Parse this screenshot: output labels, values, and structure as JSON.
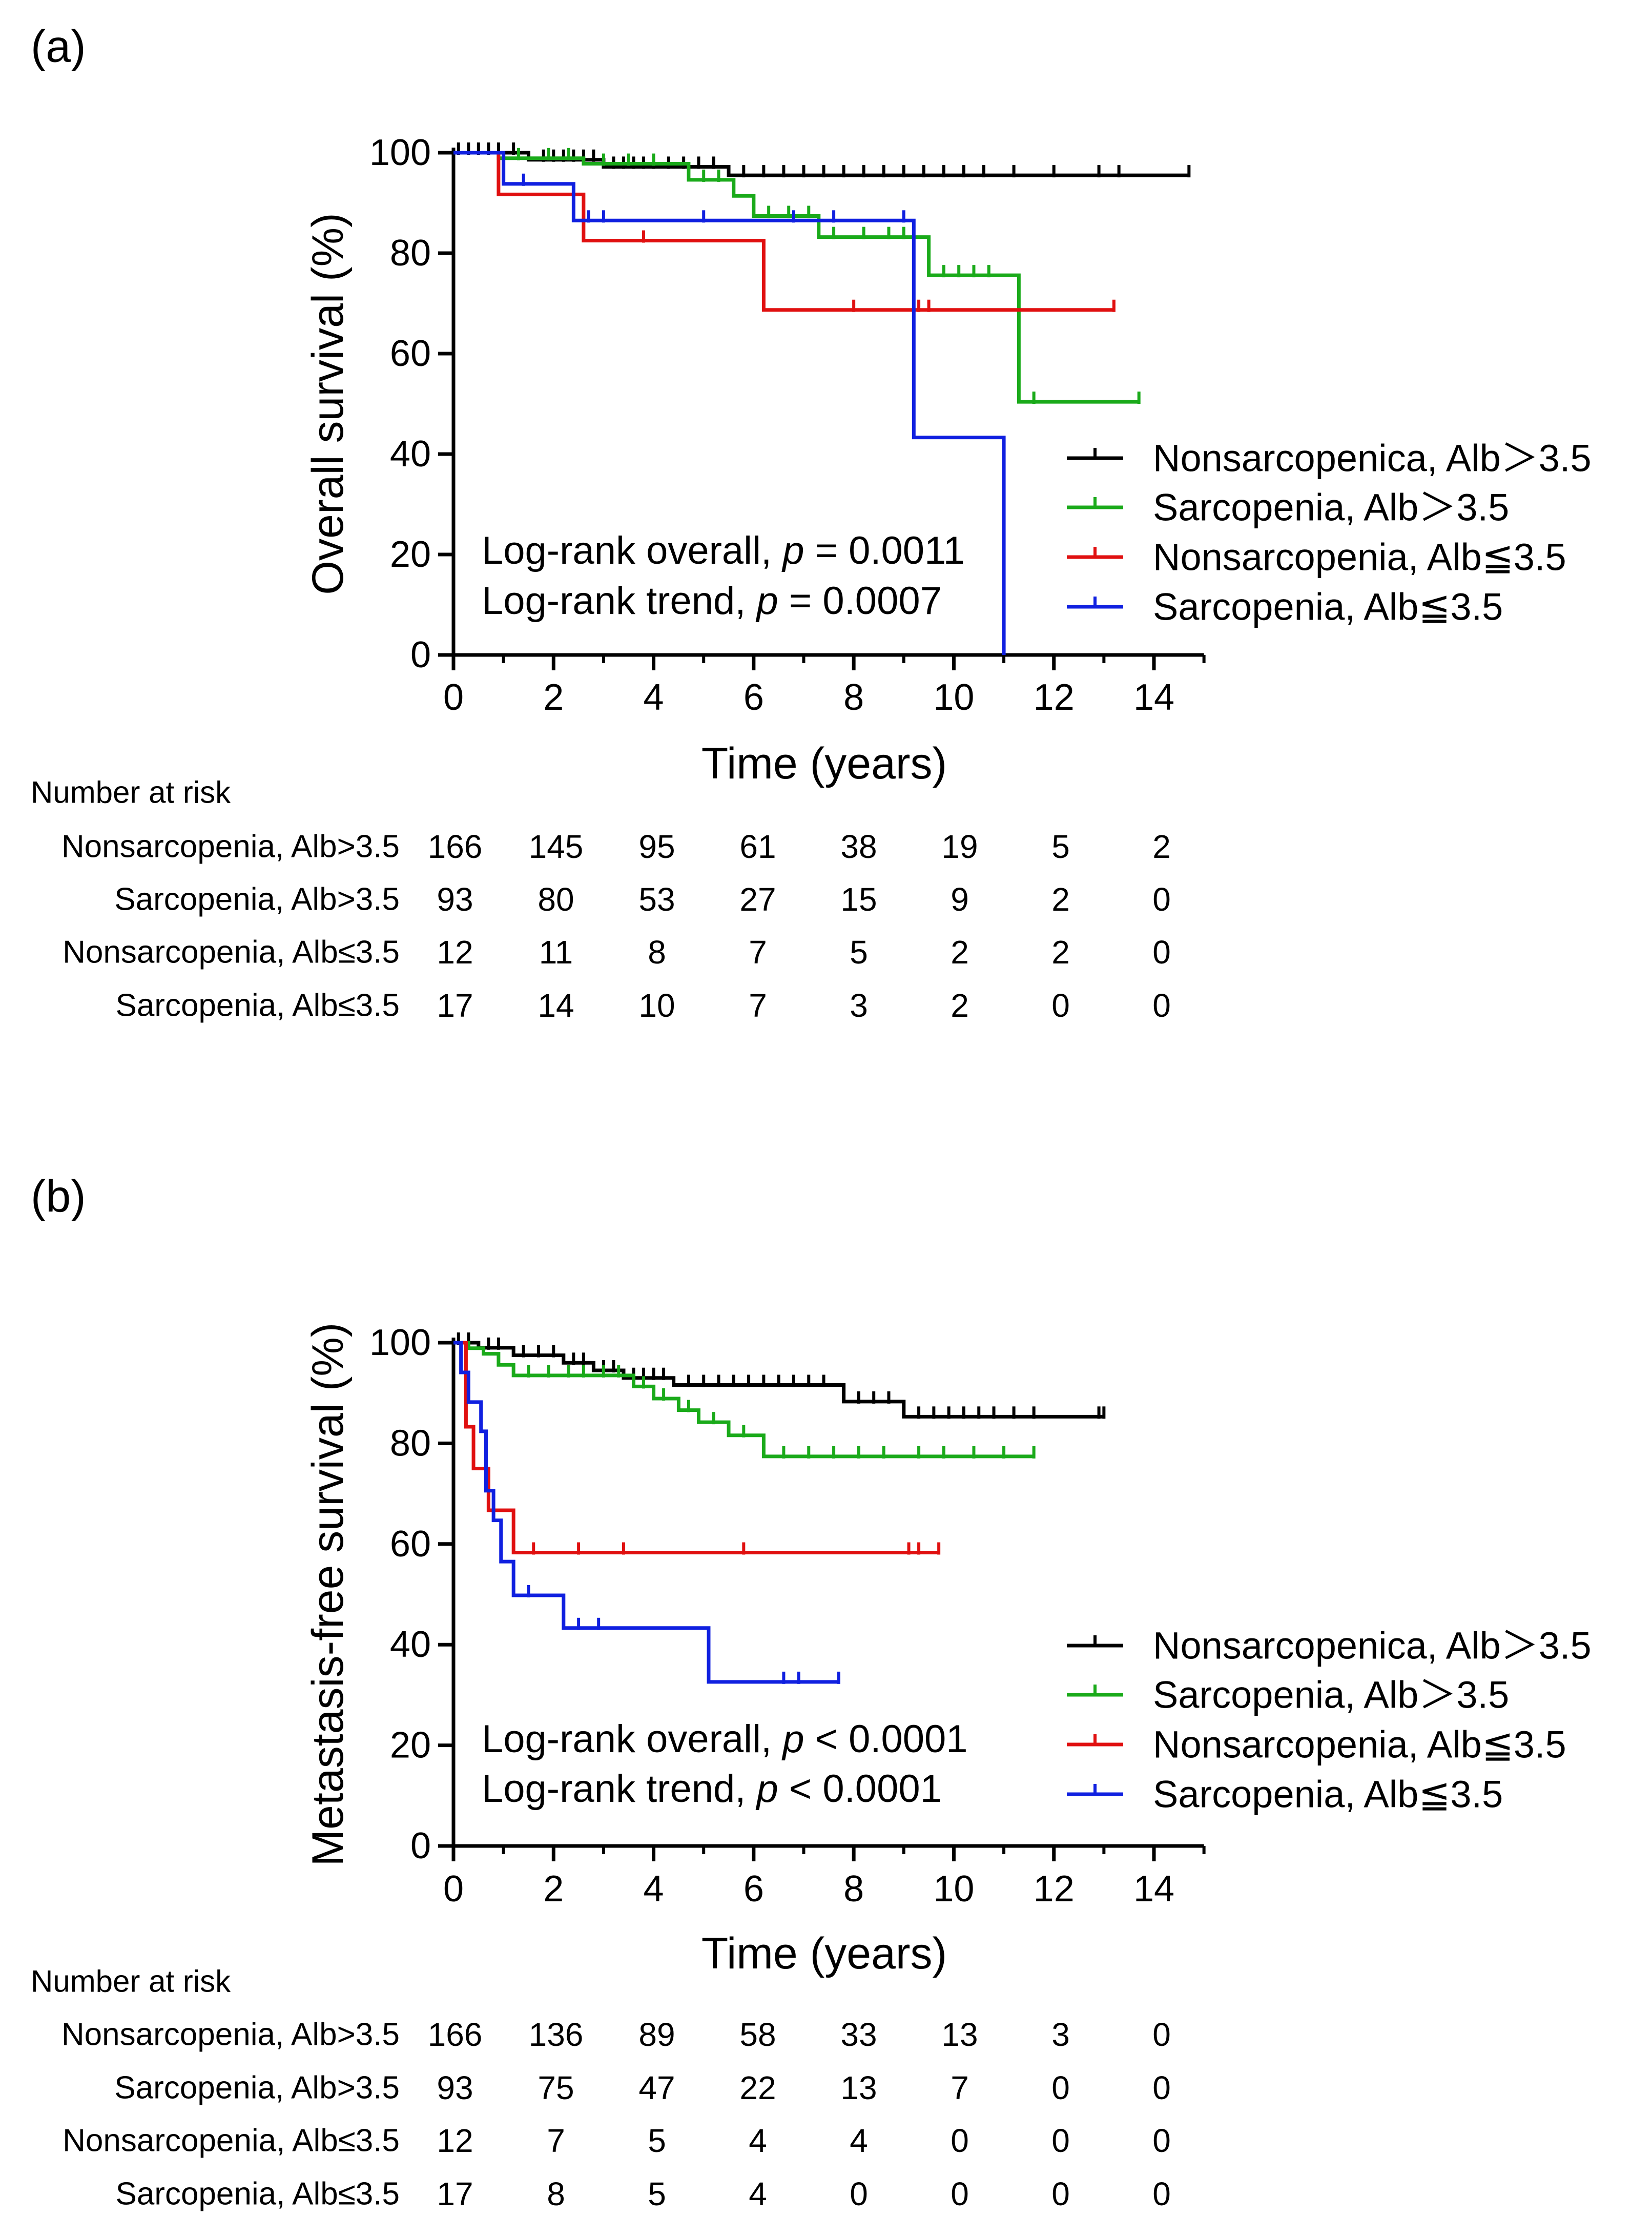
{
  "colors": {
    "Nonsarcopenica, Alb＞3.5": "#000000",
    "Sarcopenia, Alb＞3.5": "#1aaa1a",
    "Nonsarcopenia, Alb≦3.5": "#e01010",
    "Sarcopenia, Alb≦3.5": "#1020e0"
  },
  "risk_table_title": "Number at risk",
  "risk_times": [
    0,
    2,
    4,
    6,
    8,
    10,
    12,
    14
  ],
  "chart_data": [
    {
      "panel_label": "(a)",
      "type": "line",
      "subtype": "kaplan-meier",
      "xlabel": "Time (years)",
      "ylabel": "Overall survival (%)",
      "xlim": [
        0,
        15
      ],
      "ylim": [
        0,
        100
      ],
      "xticks": [
        0,
        2,
        4,
        6,
        8,
        10,
        12,
        14
      ],
      "yticks": [
        0,
        20,
        40,
        60,
        80,
        100
      ],
      "legend_position": "right",
      "annotations": [
        "Log-rank overall, ",
        "p",
        " = 0.0011",
        "Log-rank trend, ",
        "p",
        " = 0.0007"
      ],
      "annotation_lines": [
        {
          "prefix": "Log-rank overall, ",
          "italic": "p",
          "suffix": " = 0.0011"
        },
        {
          "prefix": "Log-rank trend, ",
          "italic": "p",
          "suffix": " = 0.0007"
        }
      ],
      "series": [
        {
          "name": "Nonsarcopenica, Alb＞3.5",
          "steps": [
            [
              0,
              100
            ],
            [
              1.5,
              98.6
            ],
            [
              3,
              97.2
            ],
            [
              5.5,
              95.5
            ],
            [
              14.7,
              95.5
            ]
          ],
          "censors": [
            [
              0.1,
              100
            ],
            [
              0.3,
              100
            ],
            [
              0.5,
              100
            ],
            [
              0.7,
              100
            ],
            [
              0.9,
              100
            ],
            [
              1.2,
              100
            ],
            [
              1.8,
              98.6
            ],
            [
              2.0,
              98.6
            ],
            [
              2.2,
              98.6
            ],
            [
              2.4,
              98.6
            ],
            [
              2.6,
              98.6
            ],
            [
              2.8,
              98.6
            ],
            [
              3.2,
              97.2
            ],
            [
              3.4,
              97.2
            ],
            [
              3.6,
              97.2
            ],
            [
              3.8,
              97.2
            ],
            [
              4.0,
              97.2
            ],
            [
              4.3,
              97.2
            ],
            [
              4.6,
              97.2
            ],
            [
              4.9,
              97.2
            ],
            [
              5.2,
              97.2
            ],
            [
              5.8,
              95.5
            ],
            [
              6.2,
              95.5
            ],
            [
              6.6,
              95.5
            ],
            [
              7.0,
              95.5
            ],
            [
              7.4,
              95.5
            ],
            [
              7.8,
              95.5
            ],
            [
              8.2,
              95.5
            ],
            [
              8.6,
              95.5
            ],
            [
              9.0,
              95.5
            ],
            [
              9.4,
              95.5
            ],
            [
              9.8,
              95.5
            ],
            [
              10.2,
              95.5
            ],
            [
              10.6,
              95.5
            ],
            [
              11.2,
              95.5
            ],
            [
              12.0,
              95.5
            ],
            [
              12.9,
              95.5
            ],
            [
              13.3,
              95.5
            ],
            [
              14.7,
              95.5
            ]
          ]
        },
        {
          "name": "Sarcopenia, Alb＞3.5",
          "steps": [
            [
              0,
              100
            ],
            [
              0.9,
              98.9
            ],
            [
              2.6,
              97.8
            ],
            [
              4.7,
              94.6
            ],
            [
              5.6,
              91.4
            ],
            [
              6.0,
              87.4
            ],
            [
              7.3,
              83.2
            ],
            [
              9.5,
              75.6
            ],
            [
              11.3,
              50.4
            ],
            [
              13.7,
              50.4
            ]
          ],
          "censors": [
            [
              1.3,
              98.9
            ],
            [
              1.9,
              98.9
            ],
            [
              2.3,
              98.9
            ],
            [
              3.0,
              97.8
            ],
            [
              3.5,
              97.8
            ],
            [
              4.0,
              97.8
            ],
            [
              5.0,
              94.6
            ],
            [
              5.3,
              94.6
            ],
            [
              6.3,
              87.4
            ],
            [
              6.7,
              87.4
            ],
            [
              7.1,
              87.4
            ],
            [
              7.6,
              83.2
            ],
            [
              8.2,
              83.2
            ],
            [
              8.7,
              83.2
            ],
            [
              9.0,
              83.2
            ],
            [
              9.8,
              75.6
            ],
            [
              10.1,
              75.6
            ],
            [
              10.4,
              75.6
            ],
            [
              10.7,
              75.6
            ],
            [
              11.6,
              50.4
            ],
            [
              13.7,
              50.4
            ]
          ]
        },
        {
          "name": "Nonsarcopenia, Alb≦3.5",
          "steps": [
            [
              0,
              100
            ],
            [
              0.9,
              91.7
            ],
            [
              2.6,
              82.5
            ],
            [
              6.2,
              68.7
            ],
            [
              13.2,
              68.7
            ]
          ],
          "censors": [
            [
              3.8,
              82.5
            ],
            [
              8.0,
              68.7
            ],
            [
              9.3,
              68.7
            ],
            [
              9.5,
              68.7
            ],
            [
              13.2,
              68.7
            ]
          ]
        },
        {
          "name": "Sarcopenia, Alb≦3.5",
          "steps": [
            [
              0,
              100
            ],
            [
              1.0,
              93.8
            ],
            [
              2.4,
              86.5
            ],
            [
              7.3,
              86.5
            ],
            [
              9.2,
              43.3
            ],
            [
              11.0,
              0
            ]
          ],
          "censors": [
            [
              1.4,
              93.8
            ],
            [
              2.7,
              86.5
            ],
            [
              3.0,
              86.5
            ],
            [
              5.0,
              86.5
            ],
            [
              6.8,
              86.5
            ],
            [
              7.6,
              86.5
            ],
            [
              9.0,
              86.5
            ]
          ]
        }
      ],
      "risk_table": [
        {
          "label": "Nonsarcopenia, Alb>3.5",
          "values": [
            166,
            145,
            95,
            61,
            38,
            19,
            5,
            2
          ]
        },
        {
          "label": "Sarcopenia, Alb>3.5",
          "values": [
            93,
            80,
            53,
            27,
            15,
            9,
            2,
            0
          ]
        },
        {
          "label": "Nonsarcopenia, Alb≤3.5",
          "values": [
            12,
            11,
            8,
            7,
            5,
            2,
            2,
            0
          ]
        },
        {
          "label": "Sarcopenia, Alb≤3.5",
          "values": [
            17,
            14,
            10,
            7,
            3,
            2,
            0,
            0
          ]
        }
      ]
    },
    {
      "panel_label": "(b)",
      "type": "line",
      "subtype": "kaplan-meier",
      "xlabel": "Time (years)",
      "ylabel": "Metastasis-free survival (%)",
      "xlim": [
        0,
        15
      ],
      "ylim": [
        0,
        100
      ],
      "xticks": [
        0,
        2,
        4,
        6,
        8,
        10,
        12,
        14
      ],
      "yticks": [
        0,
        20,
        40,
        60,
        80,
        100
      ],
      "legend_position": "right",
      "annotations": [
        "Log-rank overall, ",
        "p",
        " < 0.0001",
        "Log-rank trend, ",
        "p",
        " < 0.0001"
      ],
      "annotation_lines": [
        {
          "prefix": "Log-rank overall, ",
          "italic": "p",
          "suffix": " < 0.0001"
        },
        {
          "prefix": "Log-rank trend, ",
          "italic": "p",
          "suffix": " < 0.0001"
        }
      ],
      "series": [
        {
          "name": "Nonsarcopenica, Alb＞3.5",
          "steps": [
            [
              0,
              100
            ],
            [
              0.5,
              99
            ],
            [
              1.2,
              97.5
            ],
            [
              2.2,
              96
            ],
            [
              2.8,
              94.5
            ],
            [
              3.4,
              93
            ],
            [
              4.4,
              91.6
            ],
            [
              7.8,
              88.3
            ],
            [
              9.0,
              85.3
            ],
            [
              13.0,
              85.3
            ]
          ],
          "censors": [
            [
              0.1,
              100
            ],
            [
              0.3,
              100
            ],
            [
              0.7,
              99
            ],
            [
              0.9,
              99
            ],
            [
              1.4,
              97.5
            ],
            [
              1.7,
              97.5
            ],
            [
              2.0,
              97.5
            ],
            [
              2.4,
              96
            ],
            [
              2.6,
              96
            ],
            [
              3.0,
              94.5
            ],
            [
              3.2,
              94.5
            ],
            [
              3.6,
              93
            ],
            [
              3.8,
              93
            ],
            [
              4.0,
              93
            ],
            [
              4.2,
              93
            ],
            [
              4.7,
              91.6
            ],
            [
              5.0,
              91.6
            ],
            [
              5.3,
              91.6
            ],
            [
              5.6,
              91.6
            ],
            [
              5.9,
              91.6
            ],
            [
              6.2,
              91.6
            ],
            [
              6.5,
              91.6
            ],
            [
              6.8,
              91.6
            ],
            [
              7.1,
              91.6
            ],
            [
              7.4,
              91.6
            ],
            [
              8.1,
              88.3
            ],
            [
              8.4,
              88.3
            ],
            [
              8.7,
              88.3
            ],
            [
              9.3,
              85.3
            ],
            [
              9.6,
              85.3
            ],
            [
              9.9,
              85.3
            ],
            [
              10.2,
              85.3
            ],
            [
              10.5,
              85.3
            ],
            [
              10.8,
              85.3
            ],
            [
              11.2,
              85.3
            ],
            [
              11.6,
              85.3
            ],
            [
              12.9,
              85.3
            ],
            [
              13.0,
              85.3
            ]
          ]
        },
        {
          "name": "Sarcopenia, Alb＞3.5",
          "steps": [
            [
              0,
              100
            ],
            [
              0.3,
              98.9
            ],
            [
              0.6,
              97.8
            ],
            [
              0.9,
              95.6
            ],
            [
              1.2,
              93.5
            ],
            [
              3.6,
              91.3
            ],
            [
              4.0,
              88.9
            ],
            [
              4.5,
              86.6
            ],
            [
              4.9,
              84.2
            ],
            [
              5.5,
              81.6
            ],
            [
              6.2,
              77.4
            ],
            [
              11.6,
              77.4
            ]
          ],
          "censors": [
            [
              1.5,
              93.5
            ],
            [
              1.9,
              93.5
            ],
            [
              2.3,
              93.5
            ],
            [
              2.6,
              93.5
            ],
            [
              3.0,
              93.5
            ],
            [
              3.3,
              93.5
            ],
            [
              3.8,
              91.3
            ],
            [
              4.2,
              88.9
            ],
            [
              4.7,
              86.6
            ],
            [
              5.2,
              84.2
            ],
            [
              5.8,
              81.6
            ],
            [
              6.6,
              77.4
            ],
            [
              7.1,
              77.4
            ],
            [
              7.6,
              77.4
            ],
            [
              8.1,
              77.4
            ],
            [
              8.6,
              77.4
            ],
            [
              9.3,
              77.4
            ],
            [
              9.8,
              77.4
            ],
            [
              10.4,
              77.4
            ],
            [
              11.0,
              77.4
            ],
            [
              11.6,
              77.4
            ]
          ]
        },
        {
          "name": "Nonsarcopenia, Alb≦3.5",
          "steps": [
            [
              0,
              100
            ],
            [
              0.25,
              83.3
            ],
            [
              0.4,
              75
            ],
            [
              0.7,
              66.7
            ],
            [
              1.2,
              58.3
            ],
            [
              9.7,
              58.3
            ]
          ],
          "censors": [
            [
              1.6,
              58.3
            ],
            [
              2.5,
              58.3
            ],
            [
              3.4,
              58.3
            ],
            [
              5.8,
              58.3
            ],
            [
              9.1,
              58.3
            ],
            [
              9.3,
              58.3
            ],
            [
              9.7,
              58.3
            ]
          ]
        },
        {
          "name": "Sarcopenia, Alb≦3.5",
          "steps": [
            [
              0,
              100
            ],
            [
              0.15,
              94.1
            ],
            [
              0.3,
              88.2
            ],
            [
              0.55,
              82.4
            ],
            [
              0.65,
              70.6
            ],
            [
              0.8,
              64.7
            ],
            [
              0.95,
              56.5
            ],
            [
              1.2,
              49.8
            ],
            [
              2.2,
              43.3
            ],
            [
              5.1,
              32.6
            ],
            [
              7.7,
              32.6
            ]
          ],
          "censors": [
            [
              1.5,
              49.8
            ],
            [
              2.5,
              43.3
            ],
            [
              2.9,
              43.3
            ],
            [
              6.6,
              32.6
            ],
            [
              6.9,
              32.6
            ],
            [
              7.7,
              32.6
            ]
          ]
        }
      ],
      "risk_table": [
        {
          "label": "Nonsarcopenia, Alb>3.5",
          "values": [
            166,
            136,
            89,
            58,
            33,
            13,
            3,
            0
          ]
        },
        {
          "label": "Sarcopenia, Alb>3.5",
          "values": [
            93,
            75,
            47,
            22,
            13,
            7,
            0,
            0
          ]
        },
        {
          "label": "Nonsarcopenia, Alb≤3.5",
          "values": [
            12,
            7,
            5,
            4,
            4,
            0,
            0,
            0
          ]
        },
        {
          "label": "Sarcopenia, Alb≤3.5",
          "values": [
            17,
            8,
            5,
            4,
            0,
            0,
            0,
            0
          ]
        }
      ]
    }
  ]
}
